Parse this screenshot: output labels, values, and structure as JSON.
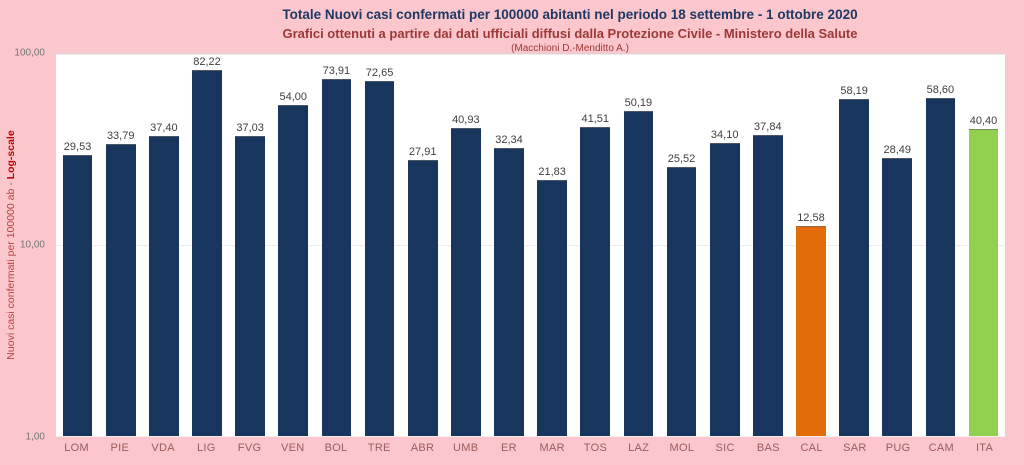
{
  "title": {
    "line1": "Totale Nuovi casi confermati per 100000 abitanti nel periodo 18 settembre - 1 ottobre 2020",
    "line2": "Grafici ottenuti a partire dai dati ufficiali diffusi dalla Protezione Civile - Ministero della Salute",
    "line3": "(Macchioni D.-Menditto A.)"
  },
  "y_axis_title": {
    "prefix": "Nuovi casi confermati per 100000 ab - ",
    "emphasis": "Log-scale"
  },
  "chart_data": {
    "type": "bar",
    "scale": "log",
    "title": "Totale Nuovi casi confermati per 100000 abitanti nel periodo 18 settembre - 1 ottobre 2020",
    "subtitle": "Grafici ottenuti a partire dai dati ufficiali diffusi dalla Protezione Civile - Ministero della Salute",
    "credits": "(Macchioni D.-Menditto A.)",
    "xlabel": "",
    "ylabel": "Nuovi casi confermati per 100000 ab - Log-scale",
    "ylim": [
      1,
      100
    ],
    "grid": false,
    "legend": "none",
    "categories": [
      "LOM",
      "PIE",
      "VDA",
      "LIG",
      "FVG",
      "VEN",
      "BOL",
      "TRE",
      "ABR",
      "UMB",
      "ER",
      "MAR",
      "TOS",
      "LAZ",
      "MOL",
      "SIC",
      "BAS",
      "CAL",
      "SAR",
      "PUG",
      "CAM",
      "ITA"
    ],
    "values": [
      29.53,
      33.79,
      37.4,
      82.22,
      37.03,
      54.0,
      73.91,
      72.65,
      27.91,
      40.93,
      32.34,
      21.83,
      41.51,
      50.19,
      25.52,
      34.1,
      37.84,
      12.58,
      58.19,
      28.49,
      58.6,
      40.4
    ],
    "value_labels": [
      "29,53",
      "33,79",
      "37,40",
      "82,22",
      "37,03",
      "54,00",
      "73,91",
      "72,65",
      "27,91",
      "40,93",
      "32,34",
      "21,83",
      "41,51",
      "50,19",
      "25,52",
      "34,10",
      "37,84",
      "12,58",
      "58,19",
      "28,49",
      "58,60",
      "40,40"
    ],
    "y_ticks": [
      {
        "label": "100,00",
        "value": 100
      },
      {
        "label": "10,00",
        "value": 10
      },
      {
        "label": "1,00",
        "value": 1
      }
    ],
    "bar_color": "#17355D",
    "highlight_colors": {
      "CAL": "#E36C0A",
      "ITA": "#92D050"
    }
  },
  "colors": {
    "background": "#FBC7CC",
    "plot_background": "#FFFFFF",
    "title_text": "#1F3864",
    "subtitle_text": "#9C3836",
    "value_label_text": "#3F3F3F",
    "x_label_text": "#9C5B5B",
    "y_tick_text": "#767676",
    "y_axis_title_text": "#C00000"
  }
}
